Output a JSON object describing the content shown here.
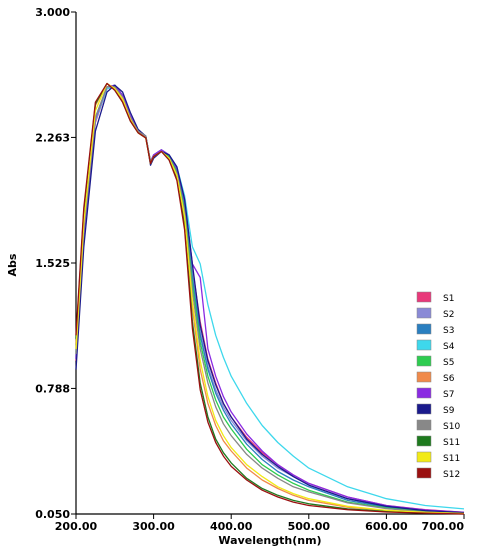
{
  "chart_data": {
    "type": "line",
    "title": "",
    "xlabel": "Wavelength(nm)",
    "ylabel": "Abs",
    "xlim": [
      200,
      700
    ],
    "ylim": [
      0.05,
      3.0
    ],
    "x_ticks": [
      "200.00",
      "300.00",
      "400.00",
      "500.00",
      "600.00",
      "700.00"
    ],
    "y_ticks": [
      "0.050",
      "0.788",
      "1.525",
      "2.263",
      "3.000"
    ],
    "grid": false,
    "legend_position": "right",
    "series": [
      {
        "name": "S1",
        "color": "#e8397a",
        "x": [
          200,
          210,
          225,
          240,
          250,
          260,
          270,
          280,
          290,
          296,
          300,
          310,
          320,
          330,
          340,
          350,
          360,
          370,
          380,
          390,
          400,
          420,
          440,
          460,
          480,
          500,
          550,
          600,
          650,
          700
        ],
        "y": [
          0.95,
          1.7,
          2.35,
          2.55,
          2.56,
          2.5,
          2.38,
          2.3,
          2.27,
          2.12,
          2.16,
          2.19,
          2.16,
          2.08,
          1.88,
          1.5,
          1.18,
          0.96,
          0.82,
          0.7,
          0.62,
          0.5,
          0.41,
          0.34,
          0.28,
          0.23,
          0.15,
          0.1,
          0.075,
          0.06
        ]
      },
      {
        "name": "S2",
        "color": "#8a8ad6",
        "x": [
          200,
          210,
          225,
          240,
          250,
          260,
          270,
          280,
          290,
          296,
          300,
          310,
          320,
          330,
          340,
          350,
          360,
          370,
          380,
          390,
          400,
          420,
          440,
          460,
          480,
          500,
          550,
          600,
          650,
          700
        ],
        "y": [
          0.98,
          1.72,
          2.38,
          2.56,
          2.57,
          2.51,
          2.39,
          2.3,
          2.27,
          2.12,
          2.15,
          2.18,
          2.15,
          2.07,
          1.86,
          1.46,
          1.12,
          0.92,
          0.78,
          0.68,
          0.6,
          0.48,
          0.39,
          0.32,
          0.27,
          0.22,
          0.14,
          0.095,
          0.07,
          0.058
        ]
      },
      {
        "name": "S3",
        "color": "#2a7fc0",
        "x": [
          200,
          210,
          225,
          240,
          250,
          260,
          270,
          280,
          290,
          296,
          300,
          310,
          320,
          330,
          340,
          350,
          360,
          370,
          380,
          390,
          400,
          420,
          440,
          460,
          480,
          500,
          550,
          600,
          650,
          700
        ],
        "y": [
          0.97,
          1.71,
          2.37,
          2.56,
          2.57,
          2.51,
          2.38,
          2.3,
          2.27,
          2.12,
          2.15,
          2.18,
          2.15,
          2.07,
          1.86,
          1.44,
          1.1,
          0.9,
          0.76,
          0.66,
          0.58,
          0.46,
          0.37,
          0.3,
          0.25,
          0.21,
          0.13,
          0.09,
          0.067,
          0.056
        ]
      },
      {
        "name": "S4",
        "color": "#3ed8ec",
        "x": [
          200,
          210,
          225,
          240,
          250,
          260,
          270,
          280,
          290,
          296,
          300,
          310,
          320,
          330,
          340,
          350,
          360,
          370,
          380,
          390,
          400,
          420,
          440,
          460,
          480,
          500,
          550,
          600,
          650,
          700
        ],
        "y": [
          0.96,
          1.7,
          2.36,
          2.55,
          2.56,
          2.5,
          2.38,
          2.3,
          2.27,
          2.12,
          2.16,
          2.19,
          2.16,
          2.09,
          1.92,
          1.62,
          1.52,
          1.28,
          1.1,
          0.97,
          0.86,
          0.7,
          0.57,
          0.47,
          0.39,
          0.32,
          0.21,
          0.14,
          0.1,
          0.08
        ]
      },
      {
        "name": "S5",
        "color": "#2ecc50",
        "x": [
          200,
          210,
          225,
          240,
          250,
          260,
          270,
          280,
          290,
          296,
          300,
          310,
          320,
          330,
          340,
          350,
          360,
          370,
          380,
          390,
          400,
          420,
          440,
          460,
          480,
          500,
          550,
          600,
          650,
          700
        ],
        "y": [
          1.0,
          1.73,
          2.38,
          2.56,
          2.57,
          2.51,
          2.38,
          2.3,
          2.27,
          2.12,
          2.15,
          2.18,
          2.15,
          2.06,
          1.84,
          1.4,
          1.06,
          0.86,
          0.72,
          0.62,
          0.55,
          0.43,
          0.34,
          0.28,
          0.23,
          0.19,
          0.12,
          0.085,
          0.064,
          0.054
        ]
      },
      {
        "name": "S6",
        "color": "#f08a4b",
        "x": [
          200,
          210,
          225,
          240,
          250,
          260,
          270,
          280,
          290,
          296,
          300,
          310,
          320,
          330,
          340,
          350,
          360,
          370,
          380,
          390,
          400,
          420,
          440,
          460,
          480,
          500,
          550,
          600,
          650,
          700
        ],
        "y": [
          1.05,
          1.8,
          2.45,
          2.58,
          2.55,
          2.48,
          2.36,
          2.29,
          2.26,
          2.11,
          2.15,
          2.18,
          2.14,
          2.04,
          1.78,
          1.26,
          0.9,
          0.7,
          0.57,
          0.48,
          0.42,
          0.32,
          0.25,
          0.2,
          0.16,
          0.13,
          0.09,
          0.07,
          0.058,
          0.052
        ]
      },
      {
        "name": "S7",
        "color": "#8a2be2",
        "x": [
          200,
          210,
          225,
          240,
          250,
          260,
          270,
          280,
          290,
          296,
          300,
          310,
          320,
          330,
          340,
          350,
          360,
          370,
          380,
          390,
          400,
          420,
          440,
          460,
          480,
          500,
          550,
          600,
          650,
          700
        ],
        "y": [
          0.96,
          1.7,
          2.37,
          2.56,
          2.57,
          2.51,
          2.39,
          2.3,
          2.27,
          2.12,
          2.16,
          2.19,
          2.16,
          2.08,
          1.89,
          1.52,
          1.44,
          1.02,
          0.86,
          0.74,
          0.65,
          0.52,
          0.42,
          0.34,
          0.28,
          0.23,
          0.15,
          0.1,
          0.074,
          0.06
        ]
      },
      {
        "name": "S9",
        "color": "#1a1a8c",
        "x": [
          200,
          210,
          225,
          240,
          250,
          260,
          270,
          280,
          290,
          296,
          300,
          310,
          320,
          330,
          340,
          350,
          360,
          370,
          380,
          390,
          400,
          420,
          440,
          460,
          480,
          500,
          550,
          600,
          650,
          700
        ],
        "y": [
          0.9,
          1.62,
          2.3,
          2.53,
          2.57,
          2.53,
          2.41,
          2.31,
          2.27,
          2.1,
          2.14,
          2.18,
          2.16,
          2.09,
          1.9,
          1.52,
          1.16,
          0.95,
          0.81,
          0.7,
          0.62,
          0.49,
          0.4,
          0.33,
          0.27,
          0.22,
          0.14,
          0.095,
          0.07,
          0.058
        ]
      },
      {
        "name": "S10",
        "color": "#888888",
        "x": [
          200,
          210,
          225,
          240,
          250,
          260,
          270,
          280,
          290,
          296,
          300,
          310,
          320,
          330,
          340,
          350,
          360,
          370,
          380,
          390,
          400,
          420,
          440,
          460,
          480,
          500,
          550,
          600,
          650,
          700
        ],
        "y": [
          0.99,
          1.72,
          2.38,
          2.56,
          2.56,
          2.5,
          2.38,
          2.3,
          2.27,
          2.12,
          2.15,
          2.18,
          2.14,
          2.05,
          1.82,
          1.36,
          1.02,
          0.82,
          0.68,
          0.58,
          0.51,
          0.4,
          0.32,
          0.26,
          0.21,
          0.18,
          0.115,
          0.082,
          0.062,
          0.053
        ]
      },
      {
        "name": "S11",
        "color": "#1e7a1e",
        "x": [
          200,
          210,
          225,
          240,
          250,
          260,
          270,
          280,
          290,
          296,
          300,
          310,
          320,
          330,
          340,
          350,
          360,
          370,
          380,
          390,
          400,
          420,
          440,
          460,
          480,
          500,
          550,
          600,
          650,
          700
        ],
        "y": [
          1.08,
          1.83,
          2.46,
          2.58,
          2.54,
          2.47,
          2.36,
          2.29,
          2.26,
          2.11,
          2.15,
          2.18,
          2.13,
          2.02,
          1.74,
          1.18,
          0.82,
          0.62,
          0.49,
          0.41,
          0.35,
          0.26,
          0.2,
          0.16,
          0.13,
          0.11,
          0.08,
          0.065,
          0.056,
          0.051
        ]
      },
      {
        "name": "S11",
        "color": "#f2ea16",
        "x": [
          200,
          210,
          225,
          240,
          250,
          260,
          270,
          280,
          290,
          296,
          300,
          310,
          320,
          330,
          340,
          350,
          360,
          370,
          380,
          390,
          400,
          420,
          440,
          460,
          480,
          500,
          550,
          600,
          650,
          700
        ],
        "y": [
          1.02,
          1.76,
          2.42,
          2.58,
          2.55,
          2.49,
          2.37,
          2.29,
          2.26,
          2.11,
          2.15,
          2.18,
          2.14,
          2.04,
          1.8,
          1.3,
          0.95,
          0.74,
          0.6,
          0.51,
          0.44,
          0.34,
          0.27,
          0.21,
          0.17,
          0.14,
          0.095,
          0.072,
          0.06,
          0.053
        ]
      },
      {
        "name": "S12",
        "color": "#9a1010",
        "x": [
          200,
          210,
          225,
          240,
          250,
          260,
          270,
          280,
          290,
          296,
          300,
          310,
          320,
          330,
          340,
          350,
          360,
          370,
          380,
          390,
          400,
          420,
          440,
          460,
          480,
          500,
          550,
          600,
          650,
          700
        ],
        "y": [
          1.1,
          1.85,
          2.47,
          2.58,
          2.54,
          2.47,
          2.36,
          2.29,
          2.26,
          2.11,
          2.15,
          2.18,
          2.13,
          2.01,
          1.72,
          1.14,
          0.78,
          0.59,
          0.47,
          0.39,
          0.33,
          0.25,
          0.19,
          0.15,
          0.12,
          0.1,
          0.075,
          0.062,
          0.055,
          0.05
        ]
      }
    ]
  }
}
